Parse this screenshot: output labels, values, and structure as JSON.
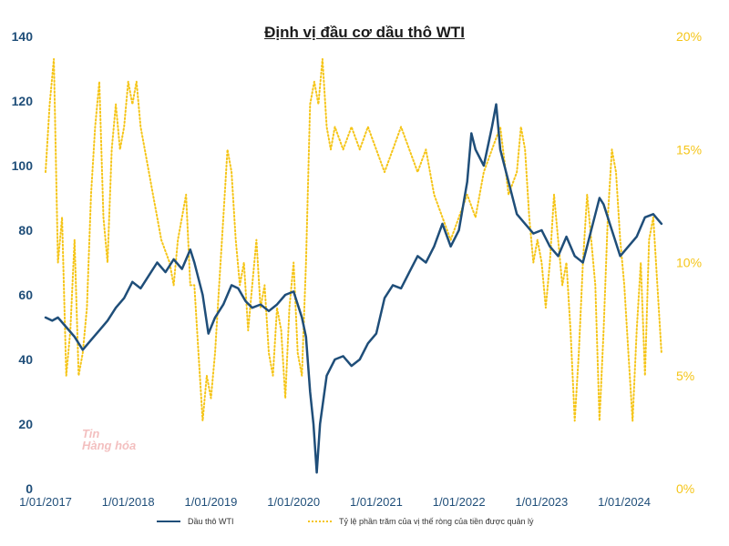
{
  "chart_data": {
    "type": "line",
    "title": "Định vị đầu cơ dầu thô WTI",
    "x_ticks": [
      "1/01/2017",
      "1/01/2018",
      "1/01/2019",
      "1/01/2020",
      "1/01/2021",
      "1/01/2022",
      "1/01/2023",
      "1/01/2024"
    ],
    "y_left": {
      "range": [
        0,
        140
      ],
      "ticks": [
        "0",
        "20",
        "40",
        "60",
        "80",
        "100",
        "120",
        "140"
      ],
      "color": "#1f4e79"
    },
    "y_right": {
      "range": [
        0,
        20
      ],
      "ticks": [
        "0%",
        "5%",
        "10%",
        "15%",
        "20%"
      ],
      "color": "#f5c518"
    },
    "grid": false,
    "legend_position": "bottom",
    "series": [
      {
        "name": "Dầu thô WTI",
        "axis": "left",
        "color": "#1f4e79",
        "style": "solid",
        "x": [
          2017.0,
          2017.08,
          2017.15,
          2017.25,
          2017.35,
          2017.45,
          2017.55,
          2017.65,
          2017.75,
          2017.85,
          2017.95,
          2018.05,
          2018.15,
          2018.25,
          2018.35,
          2018.45,
          2018.55,
          2018.65,
          2018.75,
          2018.8,
          2018.9,
          2018.97,
          2019.05,
          2019.15,
          2019.25,
          2019.33,
          2019.42,
          2019.5,
          2019.6,
          2019.7,
          2019.8,
          2019.9,
          2020.0,
          2020.1,
          2020.15,
          2020.2,
          2020.24,
          2020.28,
          2020.32,
          2020.4,
          2020.5,
          2020.6,
          2020.7,
          2020.8,
          2020.9,
          2021.0,
          2021.1,
          2021.2,
          2021.3,
          2021.4,
          2021.5,
          2021.6,
          2021.7,
          2021.8,
          2021.9,
          2022.0,
          2022.1,
          2022.15,
          2022.2,
          2022.3,
          2022.4,
          2022.45,
          2022.5,
          2022.6,
          2022.7,
          2022.8,
          2022.9,
          2023.0,
          2023.1,
          2023.2,
          2023.3,
          2023.4,
          2023.5,
          2023.6,
          2023.7,
          2023.75,
          2023.85,
          2023.95,
          2024.05,
          2024.15,
          2024.25,
          2024.35,
          2024.45
        ],
        "values": [
          53,
          52,
          53,
          50,
          47,
          43,
          46,
          49,
          52,
          56,
          59,
          64,
          62,
          66,
          70,
          67,
          71,
          68,
          74,
          70,
          60,
          48,
          53,
          57,
          63,
          62,
          58,
          56,
          57,
          55,
          57,
          60,
          61,
          53,
          47,
          30,
          20,
          5,
          20,
          35,
          40,
          41,
          38,
          40,
          45,
          48,
          59,
          63,
          62,
          67,
          72,
          70,
          75,
          82,
          75,
          80,
          95,
          110,
          105,
          100,
          112,
          119,
          105,
          95,
          85,
          82,
          79,
          80,
          75,
          72,
          78,
          72,
          70,
          80,
          90,
          88,
          80,
          72,
          75,
          78,
          84,
          85,
          82
        ]
      },
      {
        "name": "Tỷ lệ phần trăm của vị thế ròng của tiền được quản lý",
        "axis": "right",
        "color": "#f5c518",
        "style": "dotted",
        "x": [
          2017.0,
          2017.05,
          2017.1,
          2017.15,
          2017.2,
          2017.25,
          2017.3,
          2017.35,
          2017.4,
          2017.45,
          2017.5,
          2017.55,
          2017.6,
          2017.65,
          2017.7,
          2017.75,
          2017.8,
          2017.85,
          2017.9,
          2017.95,
          2018.0,
          2018.05,
          2018.1,
          2018.15,
          2018.2,
          2018.3,
          2018.35,
          2018.4,
          2018.5,
          2018.55,
          2018.6,
          2018.65,
          2018.7,
          2018.75,
          2018.8,
          2018.85,
          2018.9,
          2018.95,
          2019.0,
          2019.05,
          2019.1,
          2019.15,
          2019.2,
          2019.25,
          2019.3,
          2019.35,
          2019.4,
          2019.45,
          2019.5,
          2019.55,
          2019.6,
          2019.65,
          2019.7,
          2019.75,
          2019.8,
          2019.85,
          2019.9,
          2019.95,
          2020.0,
          2020.05,
          2020.1,
          2020.15,
          2020.2,
          2020.25,
          2020.3,
          2020.35,
          2020.4,
          2020.45,
          2020.5,
          2020.6,
          2020.7,
          2020.8,
          2020.9,
          2021.0,
          2021.1,
          2021.2,
          2021.3,
          2021.4,
          2021.5,
          2021.6,
          2021.7,
          2021.8,
          2021.9,
          2022.0,
          2022.1,
          2022.2,
          2022.3,
          2022.4,
          2022.5,
          2022.6,
          2022.7,
          2022.75,
          2022.8,
          2022.85,
          2022.9,
          2022.95,
          2023.0,
          2023.05,
          2023.1,
          2023.15,
          2023.2,
          2023.25,
          2023.3,
          2023.35,
          2023.4,
          2023.45,
          2023.5,
          2023.55,
          2023.6,
          2023.65,
          2023.7,
          2023.75,
          2023.8,
          2023.85,
          2023.9,
          2023.95,
          2024.0,
          2024.05,
          2024.1,
          2024.15,
          2024.2,
          2024.25,
          2024.3,
          2024.35,
          2024.4,
          2024.45
        ],
        "values": [
          14,
          17,
          19,
          10,
          12,
          5,
          7,
          11,
          5,
          6,
          8,
          13,
          16,
          18,
          12,
          10,
          15,
          17,
          15,
          16,
          18,
          17,
          18,
          16,
          15,
          13,
          12,
          11,
          10,
          9,
          11,
          12,
          13,
          9,
          9,
          6,
          3,
          5,
          4,
          6,
          9,
          12,
          15,
          14,
          11,
          9,
          10,
          7,
          9,
          11,
          8,
          9,
          6,
          5,
          8,
          7,
          4,
          8,
          10,
          6,
          5,
          10,
          17,
          18,
          17,
          19,
          16,
          15,
          16,
          15,
          16,
          15,
          16,
          15,
          14,
          15,
          16,
          15,
          14,
          15,
          13,
          12,
          11,
          12,
          13,
          12,
          14,
          15,
          16,
          13,
          14,
          16,
          15,
          12,
          10,
          11,
          10,
          8,
          10,
          13,
          11,
          9,
          10,
          7,
          3,
          6,
          10,
          13,
          11,
          9,
          3,
          7,
          12,
          15,
          14,
          11,
          9,
          6,
          3,
          7,
          10,
          5,
          11,
          12,
          9,
          6
        ]
      }
    ]
  },
  "watermark": {
    "line1": "Tin",
    "line2": "Hàng hóa"
  }
}
